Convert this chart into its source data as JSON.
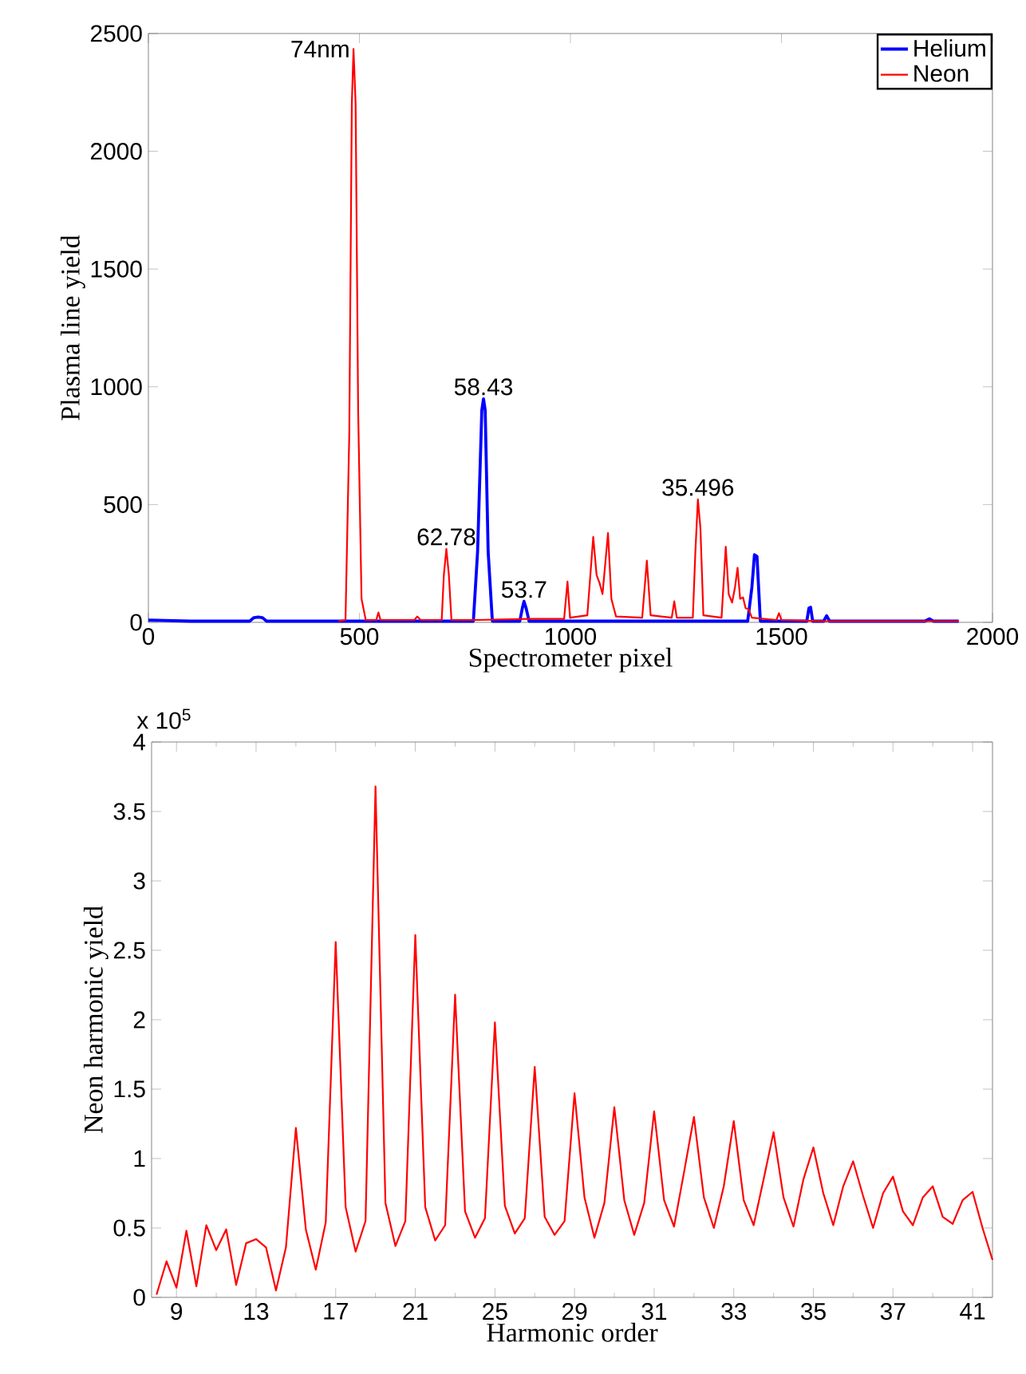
{
  "chart_data": [
    {
      "type": "line",
      "xlabel": "Spectrometer pixel",
      "ylabel": "Plasma line yield",
      "xlim": [
        0,
        2000
      ],
      "ylim": [
        0,
        2500
      ],
      "xticks": [
        0,
        500,
        1000,
        1500,
        2000
      ],
      "yticks": [
        0,
        500,
        1000,
        1500,
        2000,
        2500
      ],
      "legend": "top right",
      "series": [
        {
          "name": "Helium",
          "color": "#0000ff",
          "x": [
            0,
            100,
            240,
            250,
            260,
            270,
            280,
            500,
            770,
            780,
            790,
            794,
            798,
            805,
            815,
            880,
            886,
            890,
            895,
            902,
            1420,
            1430,
            1436,
            1442,
            1450,
            1560,
            1565,
            1569,
            1574,
            1600,
            1607,
            1614,
            1840,
            1851,
            1860,
            1920
          ],
          "values": [
            10,
            5,
            5,
            20,
            22,
            20,
            5,
            5,
            5,
            300,
            900,
            949,
            900,
            300,
            5,
            5,
            60,
            89,
            60,
            5,
            5,
            150,
            287,
            280,
            5,
            5,
            60,
            64,
            5,
            5,
            28,
            5,
            5,
            15,
            5,
            5
          ]
        },
        {
          "name": "Neon",
          "color": "#ff0000",
          "x": [
            450,
            467,
            476,
            482,
            486,
            491,
            497,
            505,
            515,
            540,
            545,
            550,
            630,
            637,
            645,
            695,
            700,
            706,
            712,
            718,
            780,
            900,
            985,
            993,
            999,
            1040,
            1054,
            1062,
            1069,
            1076,
            1089,
            1097,
            1108,
            1170,
            1181,
            1190,
            1240,
            1246,
            1252,
            1290,
            1296,
            1302,
            1308,
            1315,
            1358,
            1368,
            1375,
            1383,
            1390,
            1396,
            1402,
            1409,
            1415,
            1422,
            1430,
            1488,
            1494,
            1500,
            1600,
            1920
          ],
          "values": [
            5,
            10,
            800,
            2200,
            2434,
            2200,
            900,
            100,
            10,
            10,
            42,
            10,
            10,
            25,
            10,
            10,
            200,
            312,
            200,
            10,
            10,
            15,
            15,
            173,
            20,
            30,
            363,
            200,
            167,
            120,
            379,
            100,
            25,
            20,
            262,
            30,
            20,
            89,
            20,
            20,
            300,
            522,
            400,
            30,
            20,
            321,
            120,
            84,
            150,
            232,
            100,
            106,
            60,
            56,
            20,
            10,
            39,
            10,
            5,
            5
          ]
        }
      ],
      "annotations": [
        {
          "text": "74nm",
          "x": 486,
          "y": 2434
        },
        {
          "text": "58.43",
          "x": 794,
          "y": 949
        },
        {
          "text": "62.78",
          "x": 706,
          "y": 312
        },
        {
          "text": "53.7",
          "x": 890,
          "y": 89
        },
        {
          "text": "35.496",
          "x": 1302,
          "y": 522
        }
      ]
    },
    {
      "type": "line",
      "xlabel": "Harmonic order",
      "ylabel": "Neon harmonic yield",
      "ylim": [
        0,
        4
      ],
      "categories": [
        null,
        null,
        "9",
        null,
        null,
        null,
        null,
        null,
        null,
        null,
        "13",
        null,
        null,
        null,
        null,
        null,
        null,
        null,
        "17",
        null,
        null,
        null,
        null,
        null,
        null,
        null,
        "21",
        null,
        null,
        null,
        null,
        null,
        null,
        null,
        "25",
        null,
        null,
        null,
        null,
        null,
        null,
        null,
        "29",
        null,
        null,
        null,
        null,
        null,
        null,
        null,
        "31",
        null,
        null,
        null,
        null,
        null,
        null,
        null,
        "33",
        null,
        null,
        null,
        null,
        null,
        null,
        null,
        "35",
        null,
        null,
        null,
        null,
        null,
        null,
        null,
        "37",
        null,
        null,
        null,
        null,
        null,
        null,
        null,
        "41",
        null,
        null
      ],
      "yticks": [
        0,
        0.5,
        1,
        1.5,
        2,
        2.5,
        3,
        3.5,
        4
      ],
      "series": [
        {
          "color": "#ff0000",
          "values": [
            0.02,
            0.26,
            0.07,
            0.48,
            0.08,
            0.52,
            0.34,
            0.49,
            0.09,
            0.39,
            0.42,
            0.36,
            0.05,
            0.36,
            1.22,
            0.49,
            0.2,
            0.54,
            2.56,
            0.65,
            0.33,
            0.55,
            3.68,
            0.68,
            0.37,
            0.55,
            2.61,
            0.65,
            0.41,
            0.52,
            2.18,
            0.62,
            0.43,
            0.57,
            1.98,
            0.66,
            0.46,
            0.57,
            1.66,
            0.58,
            0.45,
            0.55,
            1.47,
            0.72,
            0.43,
            0.68,
            1.37,
            0.7,
            0.45,
            0.68,
            1.34,
            0.7,
            0.51,
            0.9,
            1.3,
            0.72,
            0.5,
            0.8,
            1.27,
            0.7,
            0.52,
            0.85,
            1.19,
            0.72,
            0.51,
            0.85,
            1.08,
            0.75,
            0.52,
            0.8,
            0.98,
            0.73,
            0.5,
            0.75,
            0.87,
            0.62,
            0.52,
            0.72,
            0.8,
            0.58,
            0.53,
            0.7,
            0.76,
            0.5,
            0.27
          ]
        }
      ],
      "annotations": [
        "x 10$^{5}$"
      ]
    }
  ]
}
